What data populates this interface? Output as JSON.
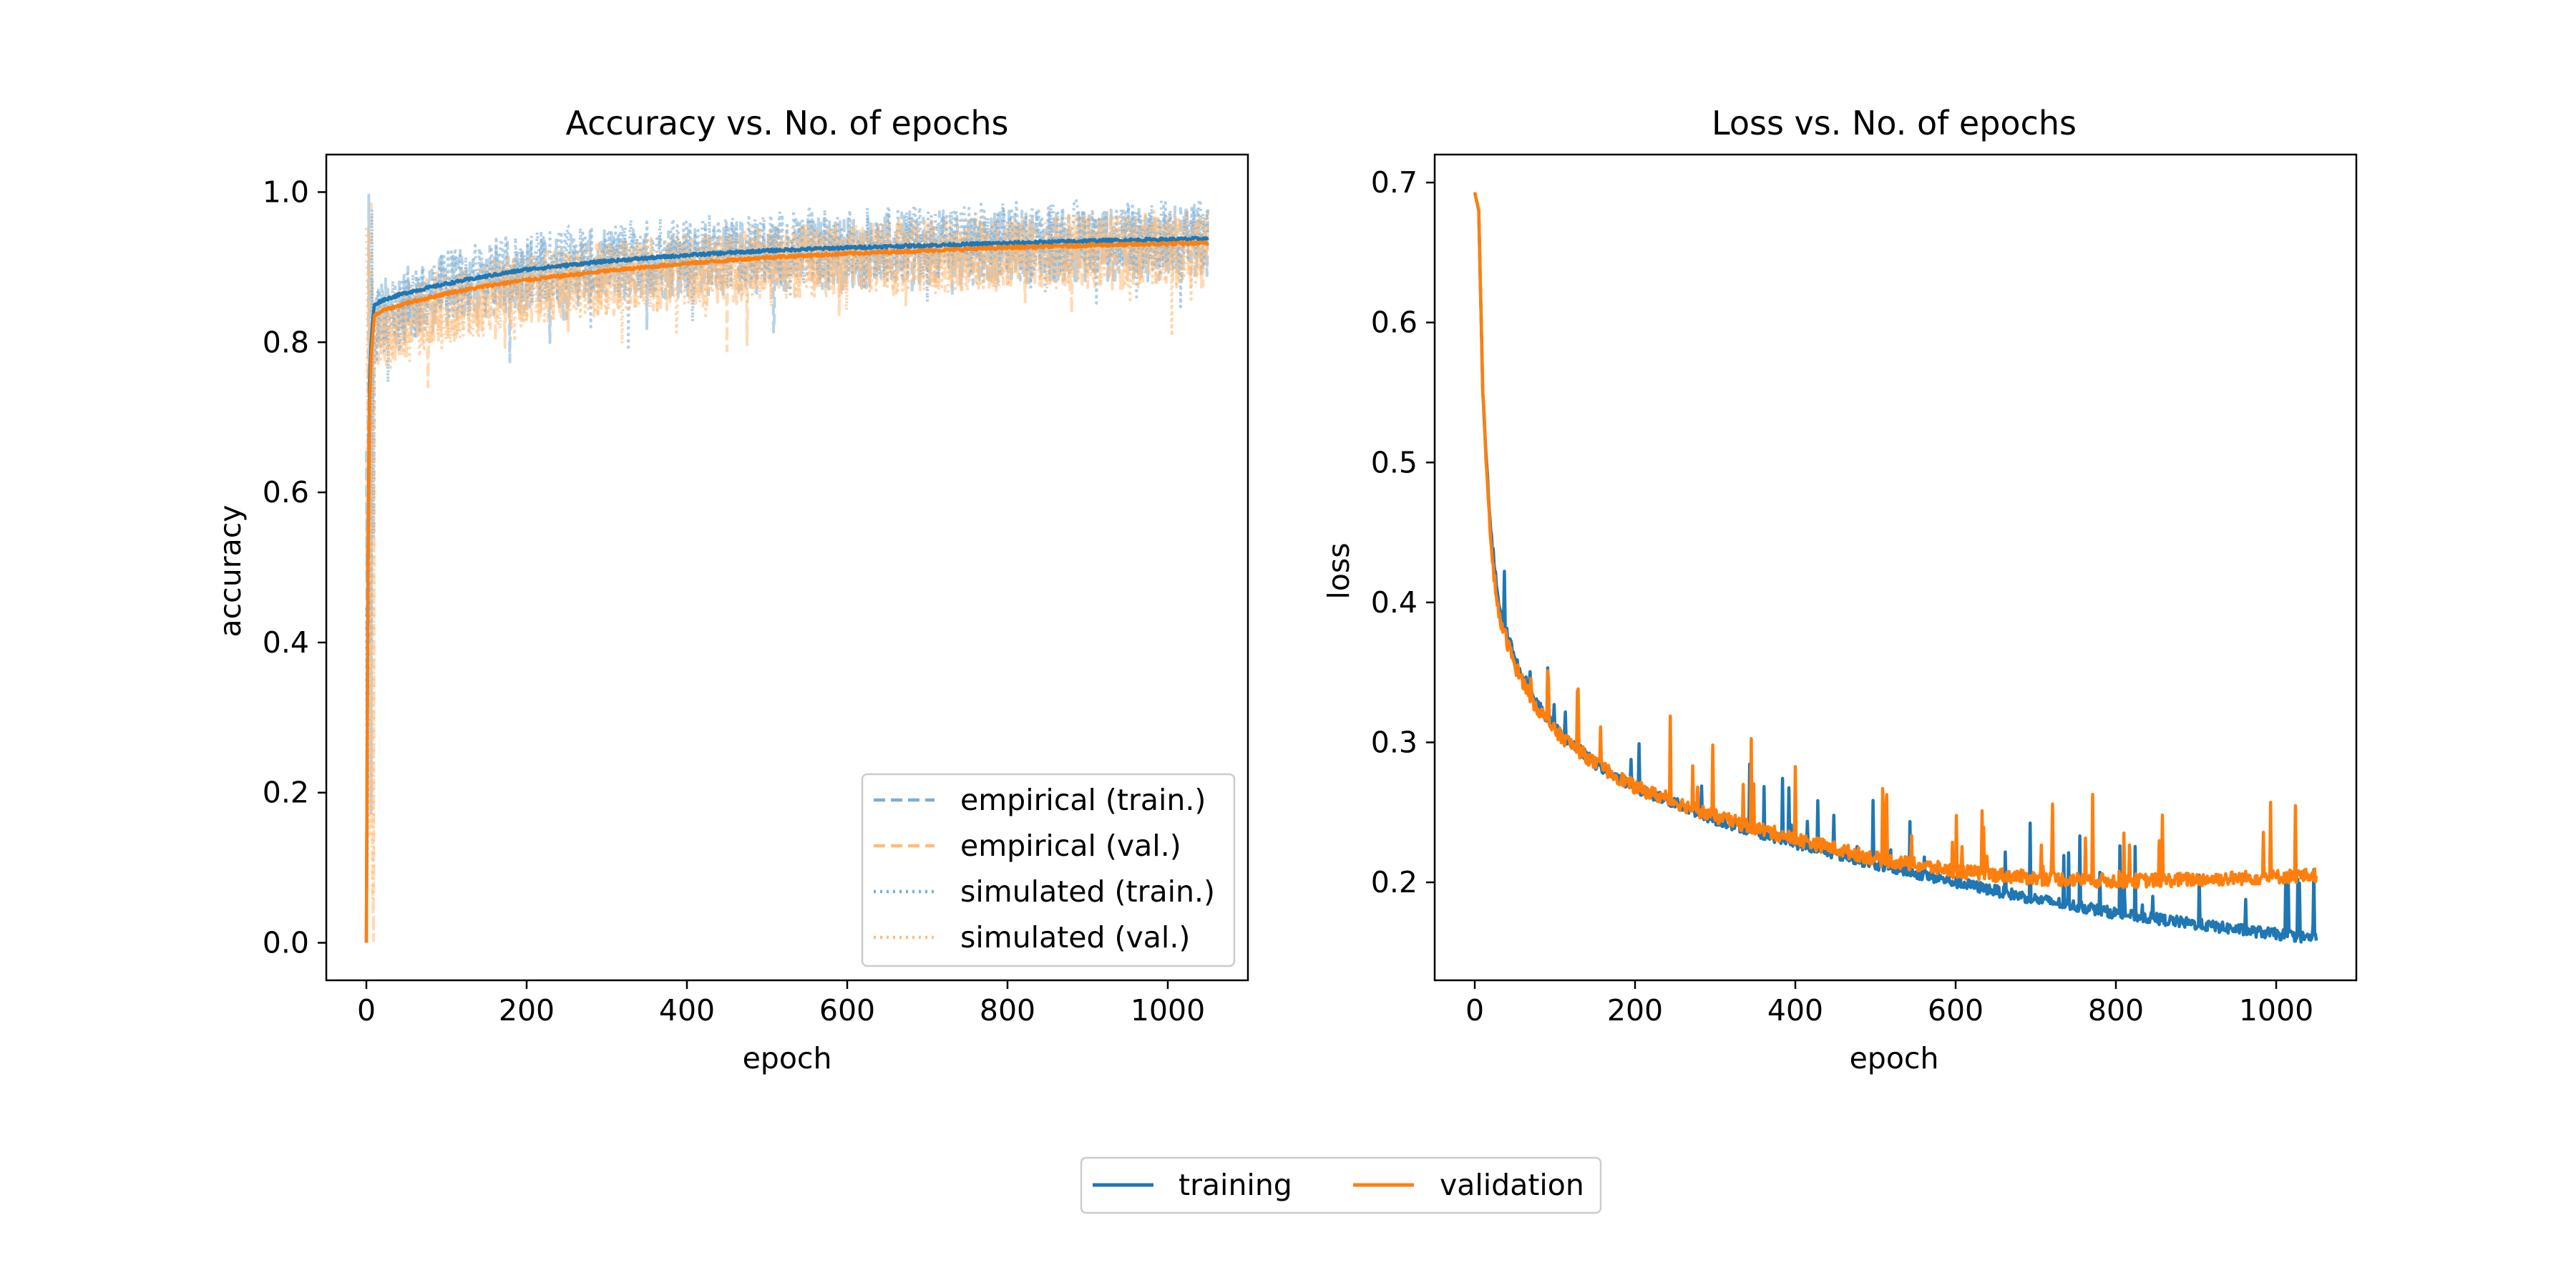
{
  "colors": {
    "blue": "#1f77b4",
    "orange": "#ff7f0e",
    "light_blue": "#7aaed6",
    "light_orange": "#ffbb78",
    "axes": "#000000"
  },
  "figure_legend": {
    "items": [
      "training",
      "validation"
    ],
    "placement": "bottom-center"
  },
  "chart_data": [
    {
      "type": "line",
      "title": "Accuracy vs. No. of epochs",
      "xlabel": "epoch",
      "ylabel": "accuracy",
      "xlim": [
        -50,
        1100
      ],
      "ylim": [
        -0.05,
        1.05
      ],
      "xticks": [
        0,
        200,
        400,
        600,
        800,
        1000
      ],
      "yticks": [
        0.0,
        0.2,
        0.4,
        0.6,
        0.8,
        1.0
      ],
      "xtick_labels": [
        "0",
        "200",
        "400",
        "600",
        "800",
        "1000"
      ],
      "ytick_labels": [
        "0.0",
        "0.2",
        "0.4",
        "0.6",
        "0.8",
        "1.0"
      ],
      "grid": false,
      "legend": {
        "placement": "lower-right",
        "entries": [
          "empirical (train.)",
          "empirical (val.)",
          "simulated (train.)",
          "simulated (val.)"
        ]
      },
      "series": [
        {
          "name": "training",
          "color": "#1f77b4",
          "style": "solid",
          "x": [
            0,
            2,
            4,
            6,
            8,
            10,
            20,
            50,
            100,
            150,
            200,
            300,
            400,
            500,
            600,
            700,
            800,
            900,
            1000,
            1050
          ],
          "y": [
            0.0,
            0.5,
            0.75,
            0.8,
            0.83,
            0.85,
            0.856,
            0.866,
            0.878,
            0.888,
            0.897,
            0.908,
            0.916,
            0.922,
            0.926,
            0.929,
            0.932,
            0.935,
            0.937,
            0.938
          ]
        },
        {
          "name": "validation",
          "color": "#ff7f0e",
          "style": "solid",
          "x": [
            0,
            2,
            4,
            6,
            8,
            10,
            20,
            50,
            100,
            150,
            200,
            300,
            400,
            500,
            600,
            700,
            800,
            900,
            1000,
            1050
          ],
          "y": [
            0.0,
            0.48,
            0.72,
            0.78,
            0.81,
            0.835,
            0.842,
            0.852,
            0.865,
            0.875,
            0.883,
            0.895,
            0.905,
            0.913,
            0.918,
            0.922,
            0.926,
            0.929,
            0.931,
            0.932
          ]
        },
        {
          "name": "empirical (train.)",
          "color": "#1f77b4",
          "style": "dashed",
          "x": [
            0,
            10,
            50,
            100,
            200,
            300,
            400,
            500,
            600,
            700,
            800,
            900,
            1000,
            1050
          ],
          "y": [
            0.0,
            0.83,
            0.85,
            0.87,
            0.89,
            0.9,
            0.91,
            0.915,
            0.92,
            0.925,
            0.928,
            0.93,
            0.932,
            0.933
          ]
        },
        {
          "name": "empirical (val.)",
          "color": "#ff7f0e",
          "style": "dashed",
          "x": [
            0,
            10,
            50,
            100,
            200,
            300,
            400,
            500,
            600,
            700,
            800,
            900,
            1000,
            1050
          ],
          "y": [
            0.0,
            0.8,
            0.83,
            0.85,
            0.87,
            0.885,
            0.895,
            0.905,
            0.91,
            0.915,
            0.918,
            0.92,
            0.922,
            0.923
          ]
        },
        {
          "name": "simulated (train.)",
          "color": "#1f77b4",
          "style": "dotted",
          "x": [
            0,
            10,
            50,
            100,
            200,
            300,
            400,
            500,
            600,
            700,
            800,
            900,
            1000,
            1050
          ],
          "y": [
            0.0,
            0.82,
            0.85,
            0.875,
            0.9,
            0.91,
            0.92,
            0.925,
            0.93,
            0.935,
            0.937,
            0.94,
            0.942,
            0.943
          ]
        },
        {
          "name": "simulated (val.)",
          "color": "#ff7f0e",
          "style": "dotted",
          "x": [
            0,
            10,
            50,
            100,
            200,
            300,
            400,
            500,
            600,
            700,
            800,
            900,
            1000,
            1050
          ],
          "y": [
            0.0,
            0.79,
            0.82,
            0.845,
            0.87,
            0.885,
            0.895,
            0.905,
            0.91,
            0.915,
            0.92,
            0.922,
            0.925,
            0.926
          ]
        }
      ]
    },
    {
      "type": "line",
      "title": "Loss vs. No. of epochs",
      "xlabel": "epoch",
      "ylabel": "loss",
      "xlim": [
        -50,
        1100
      ],
      "ylim": [
        0.13,
        0.72
      ],
      "xticks": [
        0,
        200,
        400,
        600,
        800,
        1000
      ],
      "yticks": [
        0.2,
        0.3,
        0.4,
        0.5,
        0.6,
        0.7
      ],
      "xtick_labels": [
        "0",
        "200",
        "400",
        "600",
        "800",
        "1000"
      ],
      "ytick_labels": [
        "0.2",
        "0.3",
        "0.4",
        "0.5",
        "0.6",
        "0.7"
      ],
      "grid": false,
      "series": [
        {
          "name": "training",
          "color": "#1f77b4",
          "style": "solid",
          "x": [
            0,
            5,
            10,
            20,
            30,
            50,
            75,
            100,
            150,
            200,
            300,
            400,
            500,
            600,
            700,
            800,
            900,
            1000,
            1050
          ],
          "y": [
            0.693,
            0.68,
            0.55,
            0.45,
            0.4,
            0.36,
            0.33,
            0.31,
            0.285,
            0.268,
            0.245,
            0.228,
            0.213,
            0.2,
            0.188,
            0.178,
            0.17,
            0.163,
            0.16
          ]
        },
        {
          "name": "validation",
          "color": "#ff7f0e",
          "style": "solid",
          "x": [
            0,
            5,
            10,
            20,
            30,
            50,
            75,
            100,
            150,
            200,
            300,
            400,
            500,
            600,
            700,
            800,
            900,
            1000,
            1050
          ],
          "y": [
            0.693,
            0.68,
            0.55,
            0.44,
            0.39,
            0.355,
            0.327,
            0.308,
            0.285,
            0.268,
            0.247,
            0.231,
            0.217,
            0.208,
            0.203,
            0.201,
            0.202,
            0.204,
            0.205
          ]
        }
      ]
    }
  ]
}
